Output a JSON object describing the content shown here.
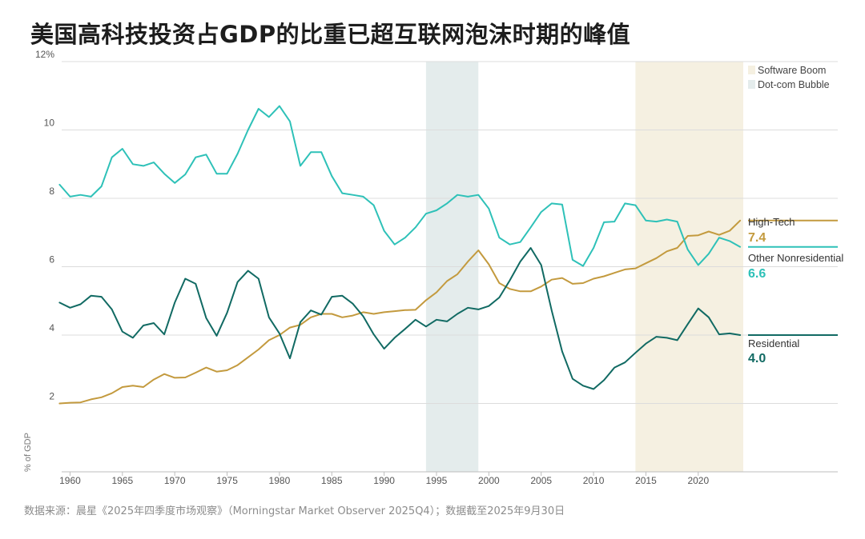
{
  "title": "美国高科技投资占GDP的比重已超互联网泡沫时期的峰值",
  "source": "数据来源：晨星《2025年四季度市场观察》（Morningstar Market Observer 2025Q4）；数据截至2025年9月30日",
  "chart_data": {
    "type": "line",
    "ylabel": "% of GDP",
    "ylim": [
      0,
      12
    ],
    "xlim": [
      1959.2,
      2024.3
    ],
    "y_ticks": [
      2,
      4,
      6,
      8,
      10,
      12
    ],
    "y_tick_labels": [
      "2",
      "4",
      "6",
      "8",
      "10",
      "12%"
    ],
    "x_ticks": [
      1960,
      1965,
      1970,
      1975,
      1980,
      1985,
      1990,
      1995,
      2000,
      2005,
      2010,
      2015,
      2020
    ],
    "grid": true,
    "legend_position": "top-right",
    "shaded_periods": [
      {
        "name": "Dot-com Bubble",
        "start": 1994,
        "end": 1999,
        "color": "#e4ecec"
      },
      {
        "name": "Software Boom",
        "start": 2014,
        "end": 2024.3,
        "color": "#f5f0e1"
      }
    ],
    "x": [
      1959,
      1960,
      1961,
      1962,
      1963,
      1964,
      1965,
      1966,
      1967,
      1968,
      1969,
      1970,
      1971,
      1972,
      1973,
      1974,
      1975,
      1976,
      1977,
      1978,
      1979,
      1980,
      1981,
      1982,
      1983,
      1984,
      1985,
      1986,
      1987,
      1988,
      1989,
      1990,
      1991,
      1992,
      1993,
      1994,
      1995,
      1996,
      1997,
      1998,
      1999,
      2000,
      2001,
      2002,
      2003,
      2004,
      2005,
      2006,
      2007,
      2008,
      2009,
      2010,
      2011,
      2012,
      2013,
      2014,
      2015,
      2016,
      2017,
      2018,
      2019,
      2020,
      2021,
      2022,
      2023,
      2024
    ],
    "series": [
      {
        "name": "High-Tech",
        "color": "#c39a3e",
        "end_value": "7.4",
        "values": [
          2.0,
          2.02,
          2.03,
          2.12,
          2.18,
          2.3,
          2.48,
          2.52,
          2.48,
          2.7,
          2.86,
          2.75,
          2.76,
          2.9,
          3.05,
          2.93,
          2.97,
          3.12,
          3.35,
          3.58,
          3.85,
          4.0,
          4.22,
          4.3,
          4.52,
          4.62,
          4.62,
          4.52,
          4.57,
          4.67,
          4.62,
          4.67,
          4.7,
          4.73,
          4.74,
          5.02,
          5.25,
          5.58,
          5.78,
          6.15,
          6.48,
          6.07,
          5.52,
          5.35,
          5.28,
          5.28,
          5.42,
          5.62,
          5.67,
          5.5,
          5.52,
          5.65,
          5.72,
          5.82,
          5.92,
          5.95,
          6.1,
          6.25,
          6.45,
          6.55,
          6.9,
          6.92,
          7.03,
          6.93,
          7.05,
          7.35
        ]
      },
      {
        "name": "Other Nonresidential",
        "color": "#2ec1b8",
        "end_value": "6.6",
        "values": [
          8.4,
          8.05,
          8.1,
          8.05,
          8.35,
          9.2,
          9.45,
          9.0,
          8.95,
          9.05,
          8.72,
          8.45,
          8.7,
          9.2,
          9.28,
          8.72,
          8.72,
          9.3,
          10.0,
          10.62,
          10.38,
          10.7,
          10.25,
          8.95,
          9.35,
          9.35,
          8.65,
          8.15,
          8.1,
          8.05,
          7.8,
          7.05,
          6.65,
          6.85,
          7.15,
          7.55,
          7.65,
          7.85,
          8.1,
          8.05,
          8.1,
          7.7,
          6.85,
          6.65,
          6.72,
          7.15,
          7.6,
          7.85,
          7.82,
          6.2,
          6.02,
          6.55,
          7.3,
          7.32,
          7.85,
          7.8,
          7.35,
          7.32,
          7.38,
          7.32,
          6.5,
          6.05,
          6.38,
          6.85,
          6.75,
          6.58
        ]
      },
      {
        "name": "Residential",
        "color": "#116a63",
        "end_value": "4.0",
        "values": [
          4.95,
          4.8,
          4.9,
          5.15,
          5.12,
          4.75,
          4.1,
          3.92,
          4.28,
          4.35,
          4.02,
          4.95,
          5.65,
          5.5,
          4.5,
          3.98,
          4.65,
          5.55,
          5.88,
          5.65,
          4.52,
          4.05,
          3.32,
          4.38,
          4.72,
          4.6,
          5.12,
          5.15,
          4.92,
          4.55,
          4.02,
          3.6,
          3.92,
          4.18,
          4.45,
          4.25,
          4.45,
          4.4,
          4.62,
          4.8,
          4.75,
          4.85,
          5.1,
          5.6,
          6.15,
          6.55,
          6.05,
          4.72,
          3.52,
          2.72,
          2.52,
          2.42,
          2.68,
          3.05,
          3.2,
          3.48,
          3.75,
          3.95,
          3.92,
          3.85,
          4.32,
          4.78,
          4.52,
          4.02,
          4.05,
          4.0
        ]
      }
    ]
  }
}
